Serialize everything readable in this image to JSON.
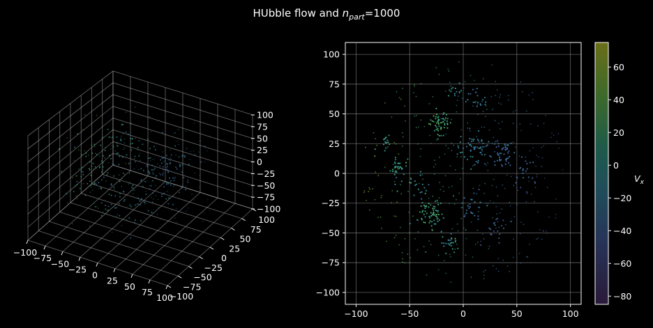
{
  "figure": {
    "title_main": "HUbble flow and ",
    "title_sym": "n",
    "title_sub": "part",
    "title_tail": "=1000"
  },
  "chart_data": [
    {
      "type": "scatter",
      "projection": "3d",
      "x_ticks": [
        "−100",
        "−75",
        "−50",
        "−25",
        "0",
        "25",
        "50",
        "75",
        "100"
      ],
      "y_ticks": [
        "−100",
        "−75",
        "−50",
        "−25",
        "0",
        "25",
        "50",
        "75",
        "100"
      ],
      "z_ticks": [
        "−100",
        "−75",
        "−50",
        "−25",
        "0",
        "25",
        "50",
        "75",
        "100"
      ],
      "xlim": [
        -100,
        100
      ],
      "ylim": [
        -100,
        100
      ],
      "zlim": [
        -100,
        100
      ],
      "grid": true,
      "clusters": [
        {
          "x": -60,
          "y": -20,
          "z": -10,
          "n": 40,
          "spread": 8,
          "v": 10
        },
        {
          "x": -30,
          "y": 10,
          "z": 40,
          "n": 45,
          "spread": 9,
          "v": 0
        },
        {
          "x": -10,
          "y": -40,
          "z": -30,
          "n": 40,
          "spread": 9,
          "v": -10
        },
        {
          "x": 20,
          "y": 30,
          "z": 10,
          "n": 40,
          "spread": 9,
          "v": -25
        },
        {
          "x": 40,
          "y": -10,
          "z": 30,
          "n": 35,
          "spread": 8,
          "v": -35
        },
        {
          "x": 10,
          "y": 10,
          "z": -40,
          "n": 30,
          "spread": 9,
          "v": -15
        }
      ]
    },
    {
      "type": "scatter",
      "x_ticks": [
        -100,
        -50,
        0,
        50,
        100
      ],
      "y_ticks": [
        -100,
        -75,
        -50,
        -25,
        0,
        25,
        50,
        75,
        100
      ],
      "xlim": [
        -110,
        110
      ],
      "ylim": [
        -110,
        110
      ],
      "grid": true,
      "colormap": "viridis",
      "colorbar": {
        "label": "V",
        "label_sub": "x",
        "range": [
          -85,
          75
        ],
        "ticks": [
          60,
          40,
          20,
          0,
          -20,
          -40,
          -60,
          -80
        ],
        "tick_labels": [
          "60",
          "40",
          "20",
          "0",
          "−20",
          "−40",
          "−60",
          "−80"
        ]
      },
      "clusters": [
        {
          "x": -22,
          "y": 42,
          "n": 55,
          "spread": 5,
          "v": 20
        },
        {
          "x": -30,
          "y": -34,
          "n": 60,
          "spread": 6,
          "v": 15
        },
        {
          "x": -12,
          "y": -58,
          "n": 25,
          "spread": 4,
          "v": 0
        },
        {
          "x": -60,
          "y": 5,
          "n": 30,
          "spread": 4,
          "v": 5
        },
        {
          "x": -72,
          "y": 25,
          "n": 15,
          "spread": 3,
          "v": 10
        },
        {
          "x": 10,
          "y": 22,
          "n": 55,
          "spread": 7,
          "v": -20
        },
        {
          "x": 35,
          "y": 16,
          "n": 50,
          "spread": 6,
          "v": -35
        },
        {
          "x": 30,
          "y": -45,
          "n": 20,
          "spread": 6,
          "v": -40
        },
        {
          "x": 8,
          "y": -25,
          "n": 25,
          "spread": 6,
          "v": -30
        },
        {
          "x": -45,
          "y": -10,
          "n": 25,
          "spread": 8,
          "v": -5
        },
        {
          "x": 55,
          "y": 0,
          "n": 20,
          "spread": 7,
          "v": -40
        },
        {
          "x": -10,
          "y": 70,
          "n": 12,
          "spread": 4,
          "v": -10
        },
        {
          "x": 15,
          "y": 60,
          "n": 18,
          "spread": 6,
          "v": -25
        }
      ],
      "background": {
        "n": 350,
        "r_max": 95
      }
    }
  ]
}
